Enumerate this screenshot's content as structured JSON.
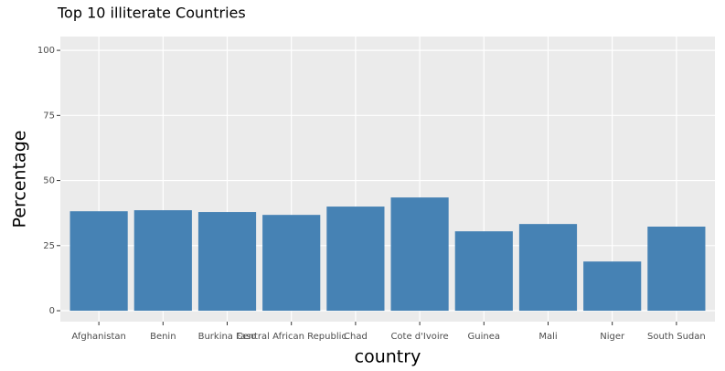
{
  "chart_data": {
    "type": "bar",
    "title": "Top 10 illiterate Countries",
    "x_label": "country",
    "y_label": "Percentage",
    "categories": [
      "Afghanistan",
      "Benin",
      "Burkina Faso",
      "Central African Republic",
      "Chad",
      "Cote d'Ivoire",
      "Guinea",
      "Mali",
      "Niger",
      "South Sudan"
    ],
    "values": [
      38.2,
      38.6,
      37.9,
      36.8,
      40.0,
      43.5,
      30.5,
      33.3,
      18.9,
      32.3
    ],
    "color": "#4682b4",
    "ylim": [
      -4.2,
      105.3
    ],
    "yticks": [
      0,
      25,
      50,
      75,
      100
    ],
    "grid": true
  }
}
